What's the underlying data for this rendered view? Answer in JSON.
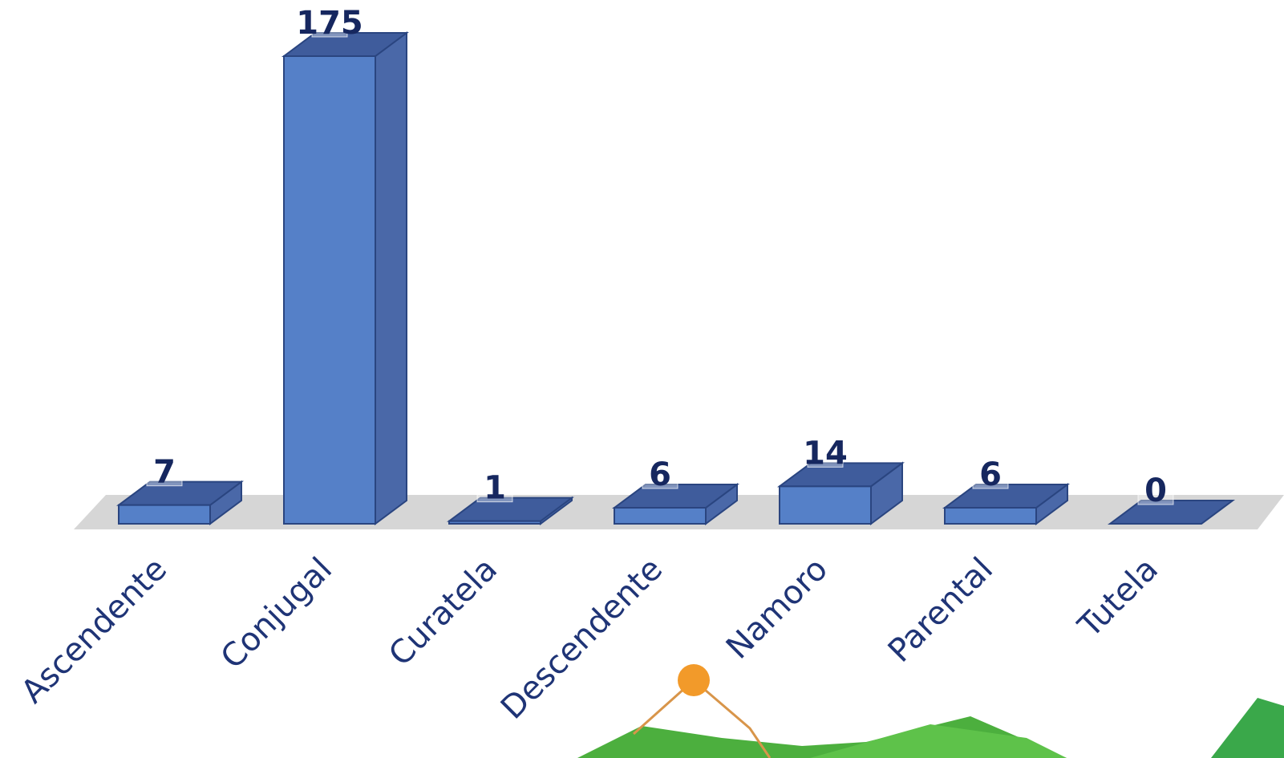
{
  "chart_data": {
    "type": "bar3d",
    "categories": [
      "Ascendente",
      "Conjugal",
      "Curatela",
      "Descendente",
      "Namoro",
      "Parental",
      "Tutela"
    ],
    "values": [
      7,
      175,
      1,
      6,
      14,
      6,
      0
    ],
    "color": "#5580c8"
  }
}
